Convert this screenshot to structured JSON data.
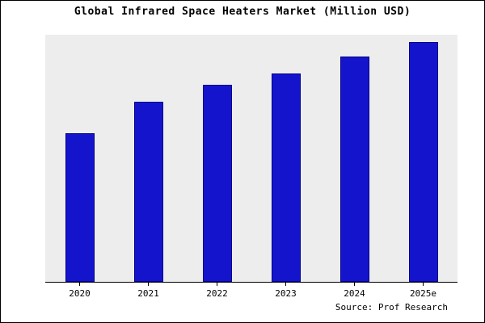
{
  "title": "Global Infrared Space Heaters Market (Million USD)",
  "source": "Source: Prof Research",
  "colors": {
    "bar": "#1414cc",
    "bar_border": "#00008b",
    "plot_bg": "#ededed",
    "frame": "#000000"
  },
  "chart_data": {
    "type": "bar",
    "title": "Global Infrared Space Heaters Market (Million USD)",
    "categories": [
      "2020",
      "2021",
      "2022",
      "2023",
      "2024",
      "2025e"
    ],
    "values": [
      62,
      75,
      82,
      87,
      94,
      100
    ],
    "xlabel": "",
    "ylabel": "",
    "ylim": [
      0,
      103
    ],
    "grid": false,
    "legend": false,
    "annotations": [
      "Source: Prof Research"
    ]
  }
}
